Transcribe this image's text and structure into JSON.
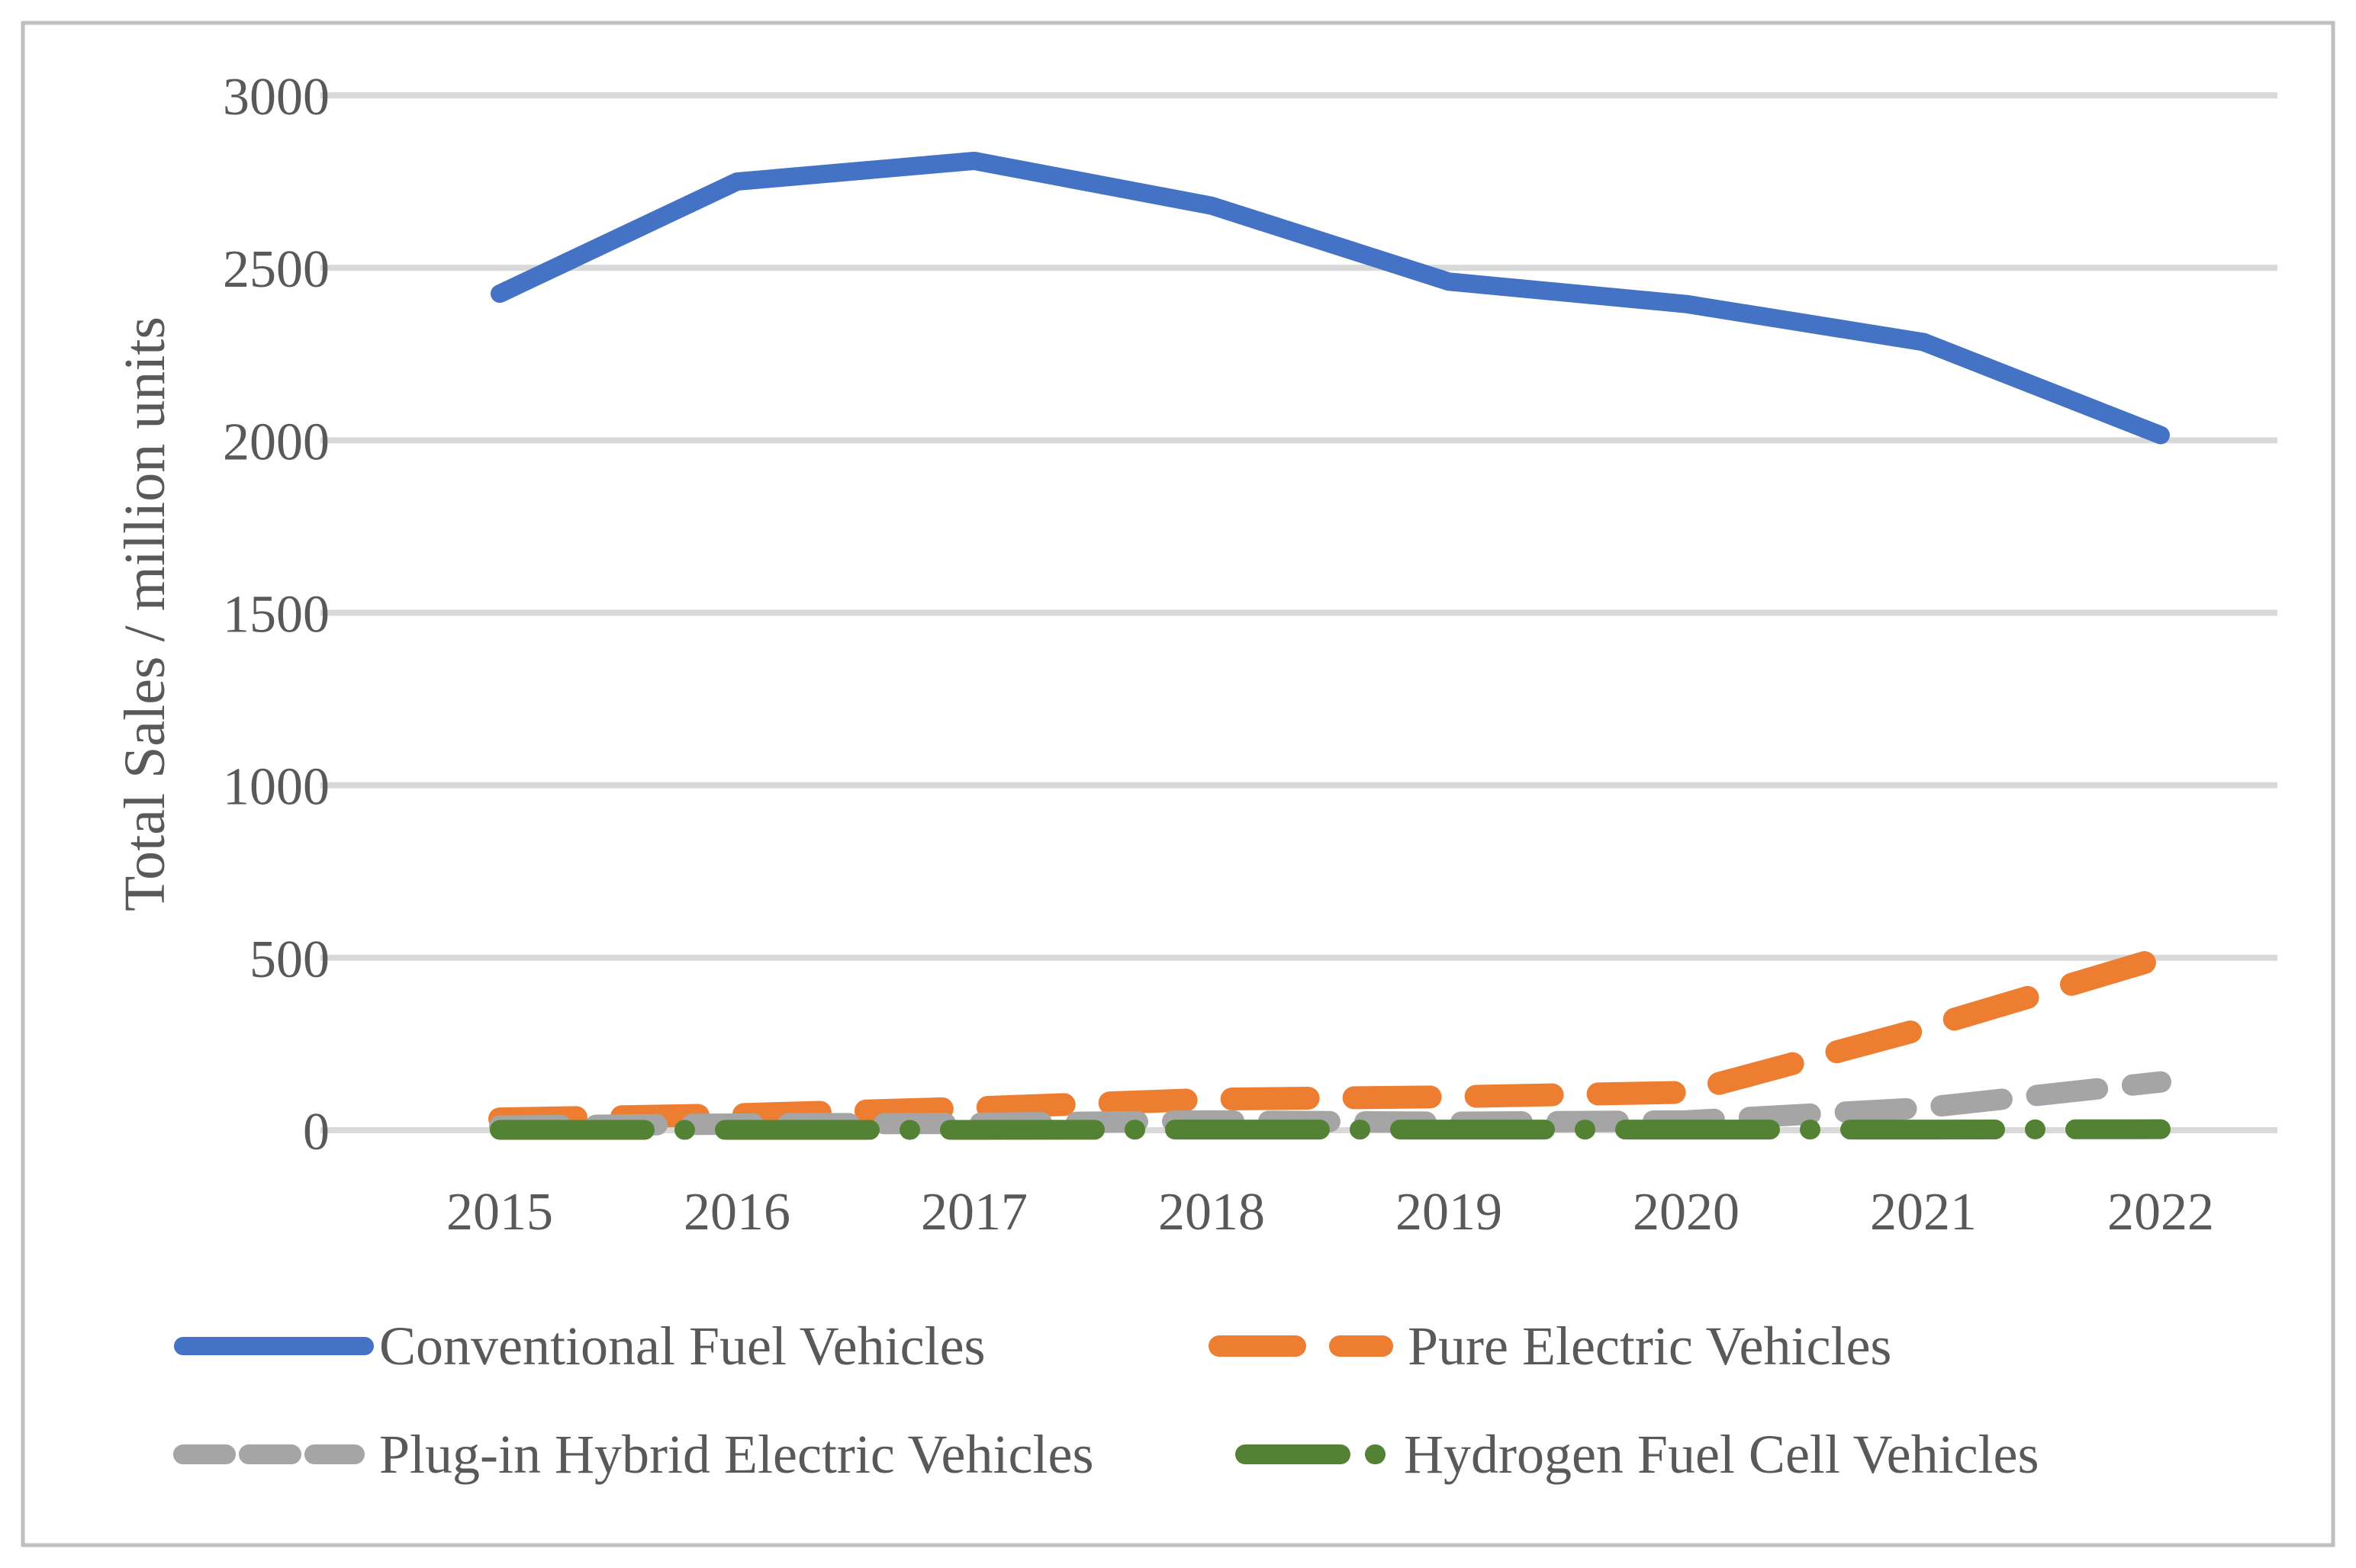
{
  "chart_data": {
    "type": "line",
    "title": "",
    "xlabel": "",
    "ylabel": "Total Sales / million units",
    "ylim": [
      0,
      3000
    ],
    "yticks": [
      0,
      500,
      1000,
      1500,
      2000,
      2500,
      3000
    ],
    "grid": "horizontal",
    "legend_position": "bottom",
    "categories": [
      "2015",
      "2016",
      "2017",
      "2018",
      "2019",
      "2020",
      "2021",
      "2022"
    ],
    "series": [
      {
        "name": "Conventional Fuel Vehicles",
        "color": "#4472C4",
        "line_style": "solid",
        "stroke_width": 24,
        "dash": "",
        "legend_dash": "",
        "values": [
          2425,
          2750,
          2810,
          2680,
          2460,
          2395,
          2285,
          2015
        ]
      },
      {
        "name": "Pure Electric Vehicles",
        "color": "#ED7D31",
        "line_style": "dashed",
        "stroke_width": 30,
        "dash": "100 60",
        "legend_dash": "100 58",
        "values": [
          33,
          45,
          65,
          90,
          97,
          110,
          295,
          500
        ]
      },
      {
        "name": "Plug-in Hybrid Electric Vehicles",
        "color": "#A5A5A5",
        "line_style": "dashed",
        "stroke_width": 28,
        "dash": "80 46",
        "legend_dash": "56 30",
        "values": [
          12,
          18,
          20,
          27,
          23,
          27,
          65,
          140
        ]
      },
      {
        "name": "Hydrogen Fuel Cell Vehicles",
        "color": "#548235",
        "line_style": "long-dash-dot",
        "stroke_width": 26,
        "dash": "190 52 1 52",
        "legend_dash": "125 45 1 45",
        "values": [
          1,
          1,
          1,
          2,
          2,
          2,
          2,
          3
        ]
      }
    ],
    "colors": {
      "gridline": "#D9D9D9",
      "border": "#BFBFBF",
      "axis_text": "#595959",
      "background": "#FFFFFF"
    }
  }
}
